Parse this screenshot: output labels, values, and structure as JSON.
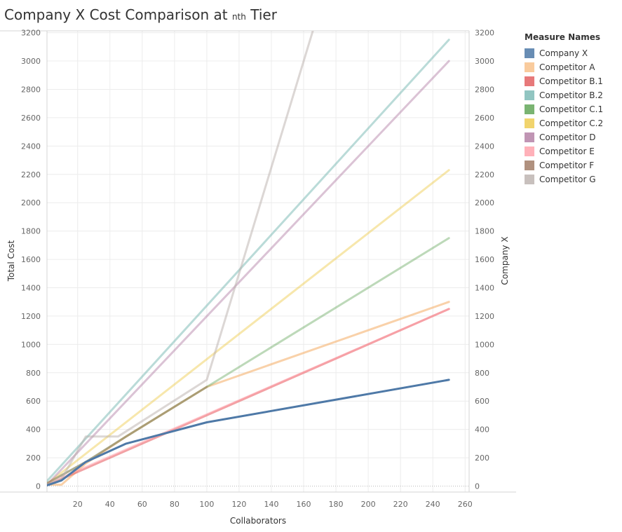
{
  "title": {
    "prefix": "Company X Cost Comparison at ",
    "tier_word": "nth",
    "suffix": " Tier"
  },
  "legend": {
    "title": "Measure Names"
  },
  "chart_data": {
    "type": "line",
    "xlabel": "Collaborators",
    "ylabel": "Total Cost",
    "y2label": "Company X",
    "xlim": [
      0,
      260
    ],
    "ylim": [
      0,
      3200
    ],
    "y2lim": [
      0,
      3200
    ],
    "xticks": [
      20,
      40,
      60,
      80,
      100,
      120,
      140,
      160,
      180,
      200,
      220,
      240,
      260
    ],
    "yticks": [
      0,
      200,
      400,
      600,
      800,
      1000,
      1200,
      1400,
      1600,
      1800,
      2000,
      2200,
      2400,
      2600,
      2800,
      3000,
      3200
    ],
    "grid": true,
    "legend_position": "right",
    "series": [
      {
        "name": "Company X",
        "color": "#4e79a7",
        "opacity": 1,
        "axis": "right",
        "points": [
          [
            1,
            5
          ],
          [
            10,
            40
          ],
          [
            25,
            170
          ],
          [
            50,
            300
          ],
          [
            100,
            450
          ],
          [
            250,
            750
          ]
        ]
      },
      {
        "name": "Competitor A",
        "color": "#f7be85",
        "opacity": 0.7,
        "axis": "left",
        "points": [
          [
            1,
            10
          ],
          [
            5,
            10
          ],
          [
            10,
            10
          ],
          [
            25,
            160
          ],
          [
            50,
            350
          ],
          [
            100,
            700
          ],
          [
            250,
            1300
          ]
        ]
      },
      {
        "name": "Competitor B.1",
        "color": "#e15759",
        "opacity": 0.55,
        "axis": "left",
        "points": [
          [
            1,
            5
          ],
          [
            250,
            1250
          ]
        ]
      },
      {
        "name": "Competitor B.2",
        "color": "#76b7b2",
        "opacity": 0.5,
        "axis": "left",
        "points": [
          [
            1,
            35
          ],
          [
            250,
            3150
          ]
        ]
      },
      {
        "name": "Competitor C.1",
        "color": "#59a14f",
        "opacity": 0.4,
        "axis": "left",
        "points": [
          [
            1,
            20
          ],
          [
            25,
            170
          ],
          [
            50,
            350
          ],
          [
            100,
            700
          ],
          [
            250,
            1750
          ]
        ]
      },
      {
        "name": "Competitor C.2",
        "color": "#edc948",
        "opacity": 0.45,
        "axis": "left",
        "points": [
          [
            1,
            15
          ],
          [
            250,
            2230
          ]
        ]
      },
      {
        "name": "Competitor D",
        "color": "#b07aa1",
        "opacity": 0.45,
        "axis": "left",
        "points": [
          [
            1,
            10
          ],
          [
            250,
            3000
          ]
        ]
      },
      {
        "name": "Competitor E",
        "color": "#ff9da7",
        "opacity": 0.5,
        "axis": "left",
        "points": [
          [
            1,
            5
          ],
          [
            10,
            60
          ],
          [
            250,
            1250
          ]
        ]
      },
      {
        "name": "Competitor F",
        "color": "#9c755f",
        "opacity": 0.45,
        "axis": "left",
        "points": [
          [
            1,
            20
          ],
          [
            25,
            170
          ],
          [
            50,
            350
          ],
          [
            100,
            700
          ]
        ]
      },
      {
        "name": "Competitor G",
        "color": "#bab0ac",
        "opacity": 0.5,
        "axis": "left",
        "points": [
          [
            1,
            10
          ],
          [
            10,
            50
          ],
          [
            25,
            350
          ],
          [
            45,
            350
          ],
          [
            100,
            750
          ],
          [
            168,
            3300
          ]
        ]
      }
    ]
  }
}
